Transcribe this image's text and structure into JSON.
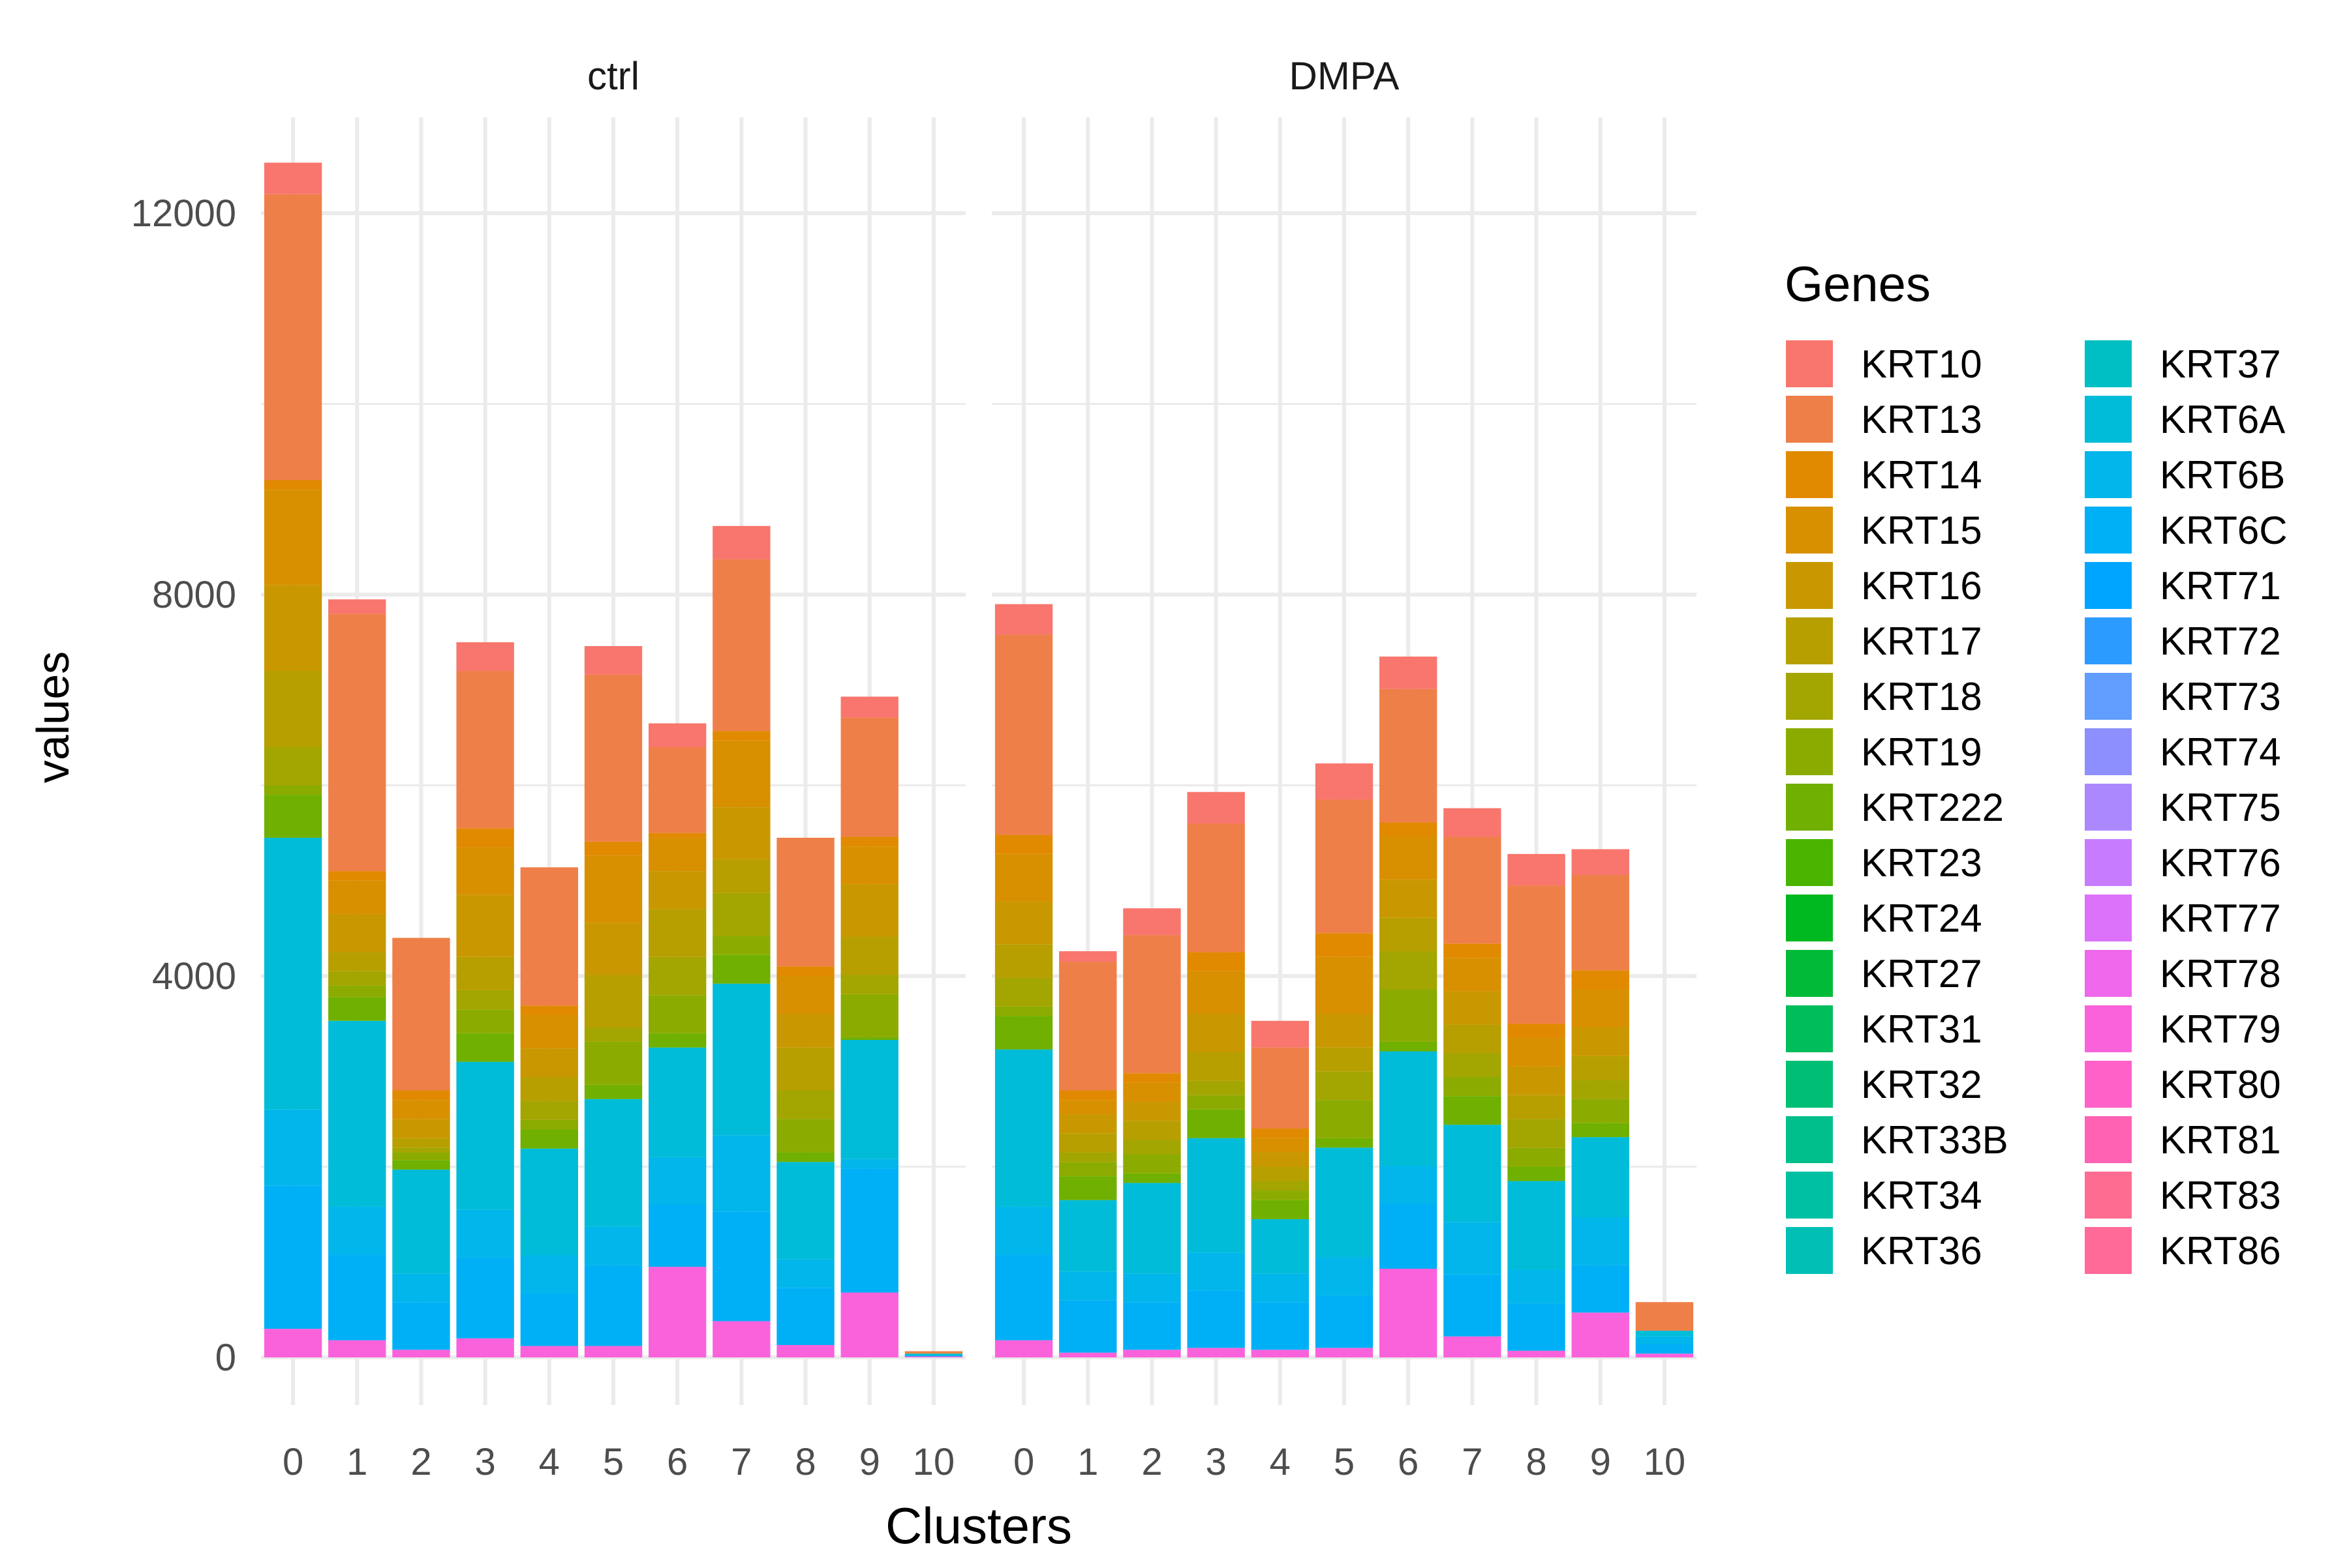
{
  "chart_data": {
    "type": "bar",
    "stacked": true,
    "facets": [
      "ctrl",
      "DMPA"
    ],
    "categories": [
      "0",
      "1",
      "2",
      "3",
      "4",
      "5",
      "6",
      "7",
      "8",
      "9",
      "10"
    ],
    "xlabel": "Clusters",
    "ylabel": "values",
    "ylim": [
      -500,
      12800
    ],
    "yticks": [
      0,
      4000,
      8000,
      12000
    ],
    "ytick_labels": [
      "0",
      "4000",
      "8000",
      "12000"
    ],
    "grid": true,
    "legend": {
      "title": "Genes",
      "position": "right",
      "columns": 2,
      "entries": [
        {
          "name": "KRT10",
          "color": "#F8766D"
        },
        {
          "name": "KRT13",
          "color": "#EF7F49"
        },
        {
          "name": "KRT14",
          "color": "#E18A00"
        },
        {
          "name": "KRT15",
          "color": "#D89000"
        },
        {
          "name": "KRT16",
          "color": "#C99800"
        },
        {
          "name": "KRT17",
          "color": "#B79F00"
        },
        {
          "name": "KRT18",
          "color": "#A3A500"
        },
        {
          "name": "KRT19",
          "color": "#8CAB00"
        },
        {
          "name": "KRT222",
          "color": "#6FB000"
        },
        {
          "name": "KRT23",
          "color": "#4AB400"
        },
        {
          "name": "KRT24",
          "color": "#00B81F"
        },
        {
          "name": "KRT27",
          "color": "#00BA38"
        },
        {
          "name": "KRT31",
          "color": "#00BD5C"
        },
        {
          "name": "KRT32",
          "color": "#00BE73"
        },
        {
          "name": "KRT33B",
          "color": "#00BF8C"
        },
        {
          "name": "KRT34",
          "color": "#00C0A3"
        },
        {
          "name": "KRT36",
          "color": "#00C0B5"
        },
        {
          "name": "KRT37",
          "color": "#00BFC4"
        },
        {
          "name": "KRT6A",
          "color": "#00BCD8"
        },
        {
          "name": "KRT6B",
          "color": "#00B6EB"
        },
        {
          "name": "KRT6C",
          "color": "#00B0F6"
        },
        {
          "name": "KRT71",
          "color": "#00A5FF"
        },
        {
          "name": "KRT72",
          "color": "#2C9BFF"
        },
        {
          "name": "KRT73",
          "color": "#619CFF"
        },
        {
          "name": "KRT74",
          "color": "#8E8FFF"
        },
        {
          "name": "KRT75",
          "color": "#AC88FF"
        },
        {
          "name": "KRT76",
          "color": "#C77CFF"
        },
        {
          "name": "KRT77",
          "color": "#DC71FA"
        },
        {
          "name": "KRT78",
          "color": "#EF67EB"
        },
        {
          "name": "KRT79",
          "color": "#FA62DB"
        },
        {
          "name": "KRT80",
          "color": "#FF61C9"
        },
        {
          "name": "KRT81",
          "color": "#FF62B2"
        },
        {
          "name": "KRT83",
          "color": "#FF6C91"
        },
        {
          "name": "KRT86",
          "color": "#FF6A98"
        }
      ]
    },
    "series_stack_order_bottom_to_top": [
      "KRT79",
      "KRT6C",
      "KRT6B",
      "KRT6A",
      "KRT222",
      "KRT19",
      "KRT18",
      "KRT17",
      "KRT16",
      "KRT15",
      "KRT14",
      "KRT13",
      "KRT10"
    ],
    "series": [
      {
        "facet": "ctrl",
        "segments": [
          {
            "gene": "KRT79",
            "values": [
              300,
              180,
              80,
              200,
              120,
              120,
              950,
              380,
              130,
              680,
              10
            ]
          },
          {
            "gene": "KRT6C",
            "values": [
              1500,
              900,
              500,
              850,
              550,
              850,
              650,
              1150,
              600,
              1300,
              10
            ]
          },
          {
            "gene": "KRT6B",
            "values": [
              800,
              500,
              300,
              500,
              400,
              400,
              500,
              800,
              300,
              100,
              0
            ]
          },
          {
            "gene": "KRT6A",
            "values": [
              2850,
              1950,
              1090,
              1550,
              1120,
              1340,
              1150,
              1590,
              1020,
              1250,
              20
            ]
          },
          {
            "gene": "KRT222",
            "values": [
              450,
              250,
              100,
              300,
              200,
              150,
              150,
              300,
              100,
              30,
              0
            ]
          },
          {
            "gene": "KRT19",
            "values": [
              100,
              120,
              80,
              250,
              100,
              450,
              400,
              200,
              350,
              450,
              0
            ]
          },
          {
            "gene": "KRT18",
            "values": [
              400,
              150,
              50,
              200,
              200,
              150,
              400,
              450,
              300,
              200,
              0
            ]
          },
          {
            "gene": "KRT17",
            "values": [
              800,
              200,
              100,
              350,
              250,
              550,
              500,
              350,
              450,
              400,
              0
            ]
          },
          {
            "gene": "KRT16",
            "values": [
              900,
              400,
              200,
              650,
              300,
              550,
              400,
              550,
              350,
              550,
              0
            ]
          },
          {
            "gene": "KRT15",
            "values": [
              1000,
              350,
              200,
              500,
              350,
              700,
              350,
              700,
              400,
              400,
              0
            ]
          },
          {
            "gene": "KRT14",
            "values": [
              100,
              100,
              100,
              200,
              100,
              150,
              50,
              100,
              100,
              100,
              5
            ]
          },
          {
            "gene": "KRT13",
            "values": [
              3000,
              2700,
              1600,
              1650,
              1450,
              1750,
              900,
              1800,
              1350,
              1250,
              20
            ]
          },
          {
            "gene": "KRT10",
            "values": [
              330,
              150,
              0,
              300,
              0,
              300,
              250,
              350,
              0,
              220,
              0
            ]
          }
        ]
      },
      {
        "facet": "DMPA",
        "segments": [
          {
            "gene": "KRT79",
            "values": [
              180,
              50,
              80,
              100,
              80,
              100,
              930,
              220,
              70,
              470,
              40
            ]
          },
          {
            "gene": "KRT6C",
            "values": [
              900,
              550,
              500,
              600,
              500,
              550,
              680,
              650,
              500,
              500,
              100
            ]
          },
          {
            "gene": "KRT6B",
            "values": [
              500,
              300,
              300,
              400,
              300,
              400,
              400,
              550,
              350,
              500,
              80
            ]
          },
          {
            "gene": "KRT6A",
            "values": [
              1650,
              750,
              950,
              1200,
              570,
              1150,
              1200,
              1020,
              930,
              840,
              60
            ]
          },
          {
            "gene": "KRT222",
            "values": [
              350,
              250,
              100,
              300,
              200,
              100,
              100,
              300,
              150,
              150,
              0
            ]
          },
          {
            "gene": "KRT19",
            "values": [
              100,
              150,
              200,
              150,
              100,
              400,
              550,
              200,
              200,
              250,
              0
            ]
          },
          {
            "gene": "KRT18",
            "values": [
              300,
              100,
              150,
              150,
              100,
              300,
              400,
              250,
              300,
              200,
              0
            ]
          },
          {
            "gene": "KRT17",
            "values": [
              350,
              200,
              200,
              300,
              150,
              250,
              350,
              300,
              250,
              250,
              0
            ]
          },
          {
            "gene": "KRT16",
            "values": [
              450,
              200,
              200,
              400,
              150,
              350,
              400,
              350,
              300,
              300,
              0
            ]
          },
          {
            "gene": "KRT15",
            "values": [
              500,
              150,
              200,
              450,
              150,
              600,
              450,
              350,
              300,
              400,
              0
            ]
          },
          {
            "gene": "KRT14",
            "values": [
              200,
              100,
              100,
              200,
              100,
              250,
              150,
              150,
              150,
              200,
              0
            ]
          },
          {
            "gene": "KRT13",
            "values": [
              2100,
              1350,
              1450,
              1350,
              850,
              1400,
              1400,
              1120,
              1450,
              1000,
              300
            ]
          },
          {
            "gene": "KRT10",
            "values": [
              320,
              110,
              280,
              330,
              280,
              380,
              340,
              300,
              330,
              270,
              0
            ]
          }
        ]
      }
    ]
  }
}
